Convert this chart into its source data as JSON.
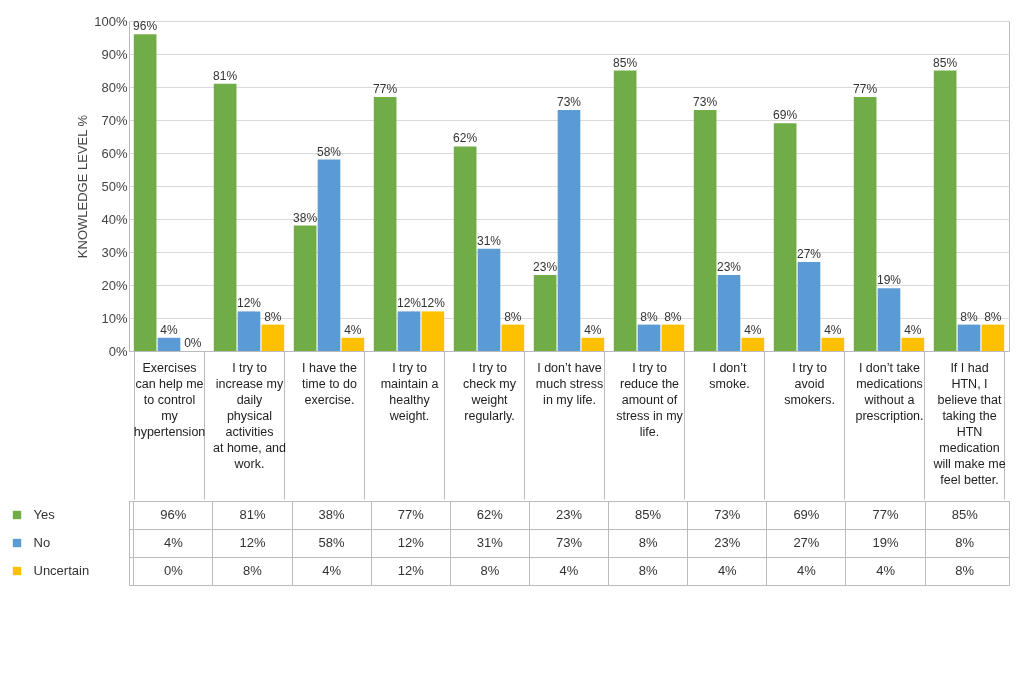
{
  "chart_data": {
    "type": "bar",
    "ylabel": "KNOWLEDGE LEVEL %",
    "categories": [
      "Exercises can help me to control my hypertension",
      "I try to increase my daily physical activities at home, and work.",
      "I have the time to do exercise.",
      "I try to maintain a healthy weight.",
      "I try to check my weight regularly.",
      "I don’t have much stress in my life.",
      "I try to reduce the amount of stress in my life.",
      "I don’t smoke.",
      "I try to avoid smokers.",
      "I don’t take medications without a prescription.",
      "If I had HTN, I believe that taking the HTN medication will make me feel better."
    ],
    "series": [
      {
        "name": "Yes",
        "color": "#70ad47",
        "values": [
          96,
          81,
          38,
          77,
          62,
          23,
          85,
          73,
          69,
          77,
          85
        ],
        "value_labels": [
          "96%",
          "81%",
          "38%",
          "77%",
          "62%",
          "23%",
          "85%",
          "73%",
          "69%",
          "77%",
          "85%"
        ]
      },
      {
        "name": "No",
        "color": "#5b9bd5",
        "values": [
          4,
          12,
          58,
          12,
          31,
          73,
          8,
          23,
          27,
          19,
          8
        ],
        "value_labels": [
          "4%",
          "12%",
          "58%",
          "12%",
          "31%",
          "73%",
          "8%",
          "23%",
          "27%",
          "19%",
          "8%"
        ]
      },
      {
        "name": "Uncertain",
        "color": "#ffc000",
        "values": [
          0,
          8,
          4,
          12,
          8,
          4,
          8,
          4,
          4,
          4,
          8
        ],
        "value_labels": [
          "0%",
          "8%",
          "4%",
          "12%",
          "8%",
          "4%",
          "8%",
          "4%",
          "4%",
          "4%",
          "8%"
        ]
      }
    ],
    "ylim": [
      0,
      100
    ],
    "yticks": [
      {
        "value": 0,
        "label": "0%"
      },
      {
        "value": 10,
        "label": "10%"
      },
      {
        "value": 20,
        "label": "20%"
      },
      {
        "value": 30,
        "label": "30%"
      },
      {
        "value": 40,
        "label": "40%"
      },
      {
        "value": 50,
        "label": "50%"
      },
      {
        "value": 60,
        "label": "60%"
      },
      {
        "value": 70,
        "label": "70%"
      },
      {
        "value": 80,
        "label": "80%"
      },
      {
        "value": 90,
        "label": "90%"
      },
      {
        "value": 100,
        "label": "100%"
      }
    ],
    "grid": "y",
    "legend": "bottom left"
  }
}
